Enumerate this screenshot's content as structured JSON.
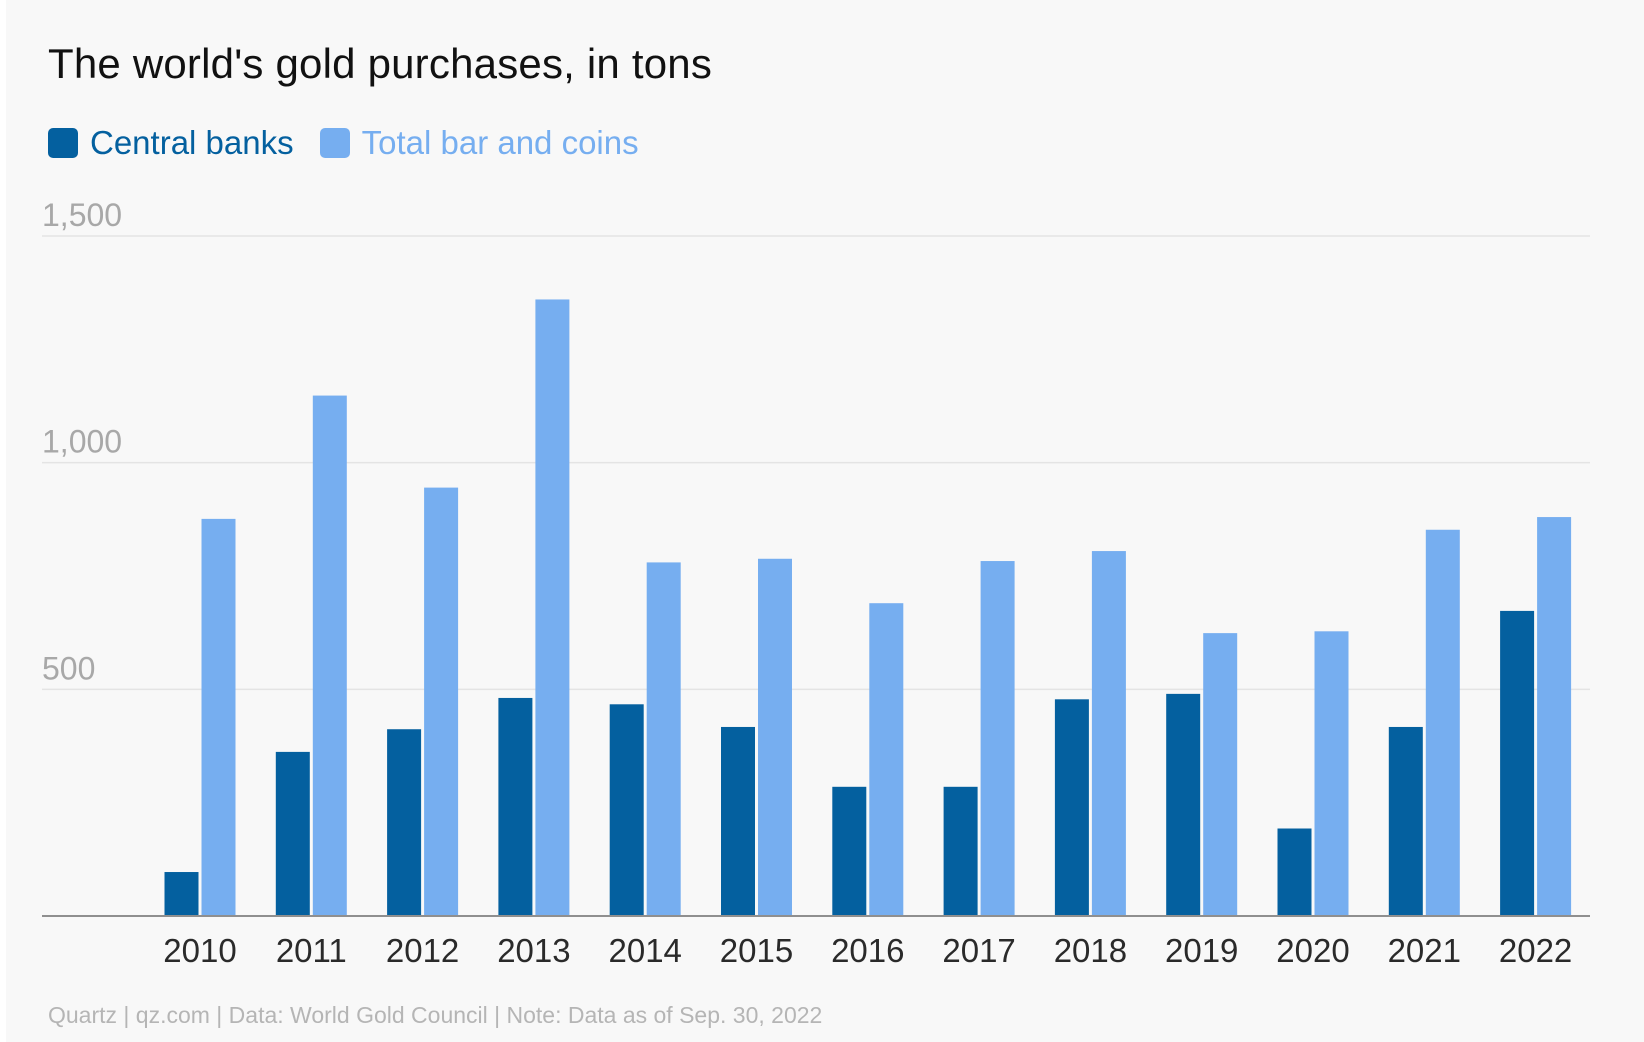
{
  "title": "The world's gold purchases, in tons",
  "footer": "Quartz | qz.com | Data: World Gold Council | Note: Data as of Sep. 30, 2022",
  "colors": {
    "central_banks": "#04609f",
    "total_bar_coins": "#76aef0",
    "grid": "#e4e4e4",
    "axis": "#8f8f8f",
    "tick_y": "#a8a8a8",
    "tick_x": "#2a2a2a"
  },
  "chart_data": {
    "type": "bar",
    "title": "The world's gold purchases, in tons",
    "xlabel": "",
    "ylabel": "",
    "ylim": [
      0,
      1500
    ],
    "yticks": [
      500,
      1000,
      1500
    ],
    "ytick_labels": [
      "500",
      "1,000",
      "1,500"
    ],
    "grid": true,
    "legend": "top-left",
    "categories": [
      "2010",
      "2011",
      "2012",
      "2013",
      "2014",
      "2015",
      "2016",
      "2017",
      "2018",
      "2019",
      "2020",
      "2021",
      "2022"
    ],
    "series": [
      {
        "name": "Central banks",
        "values": [
          97,
          362,
          412,
          481,
          467,
          417,
          285,
          285,
          478,
          490,
          193,
          417,
          673
        ]
      },
      {
        "name": "Total bar and coins",
        "values": [
          876,
          1148,
          945,
          1360,
          780,
          788,
          690,
          783,
          805,
          624,
          628,
          852,
          880
        ]
      }
    ]
  }
}
